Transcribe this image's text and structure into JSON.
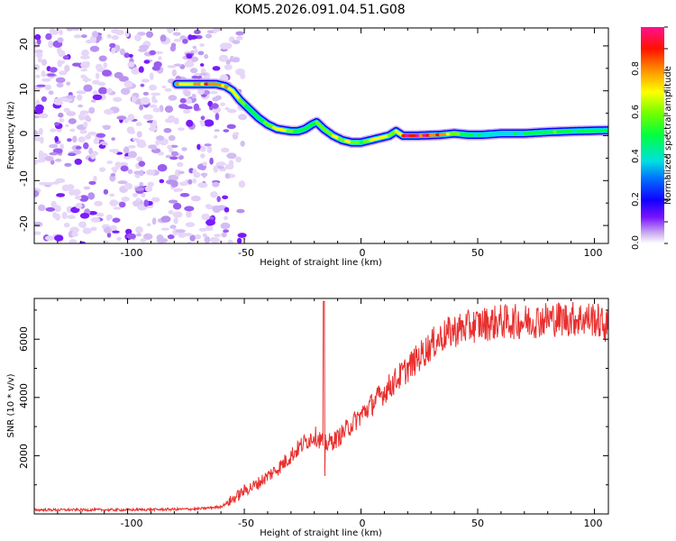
{
  "title": "KOM5.2026.091.04.51.G08",
  "colors": {
    "snr_line": "#e8302f",
    "axis": "#000000",
    "background": "#ffffff"
  },
  "chart_data": [
    {
      "type": "heatmap",
      "name": "spectrogram",
      "xlabel": "Height of straight line (km)",
      "ylabel": "Frequency (Hz)",
      "xlim": [
        -140,
        106
      ],
      "ylim": [
        -24,
        24
      ],
      "x_ticks": [
        -100,
        -50,
        0,
        50,
        100
      ],
      "y_ticks": [
        -20,
        -10,
        0,
        10,
        20
      ],
      "noise_region_x": [
        -140,
        -55
      ],
      "ridge": {
        "description": "narrow high-amplitude frequency track",
        "x": [
          -79,
          -62,
          -58,
          -55,
          -52,
          -48,
          -44,
          -40,
          -36,
          -30,
          -27,
          -24,
          -21,
          -19,
          -16,
          -12,
          -8,
          -4,
          0,
          4,
          8,
          12,
          15,
          18,
          24,
          34,
          40,
          46,
          52,
          60,
          70,
          80,
          90,
          106
        ],
        "freq": [
          11.5,
          11.5,
          11,
          10,
          8,
          6,
          4,
          2.5,
          1.5,
          1,
          1,
          1.5,
          2.5,
          3,
          1.5,
          0,
          -1,
          -1.5,
          -1.5,
          -1,
          -0.5,
          0,
          1,
          0,
          0,
          0.2,
          0.5,
          0.2,
          0.2,
          0.5,
          0.5,
          0.8,
          1,
          1.2
        ],
        "amplitude": [
          0.75,
          0.85,
          0.8,
          0.7,
          0.65,
          0.6,
          0.55,
          0.7,
          0.75,
          0.7,
          0.55,
          0.5,
          0.6,
          0.55,
          0.6,
          0.7,
          0.75,
          0.7,
          0.6,
          0.65,
          0.75,
          0.8,
          0.55,
          0.95,
          0.98,
          0.9,
          0.7,
          0.5,
          0.45,
          0.45,
          0.5,
          0.6,
          0.55,
          0.5
        ]
      },
      "colorbar": {
        "label": "Normalized spectral amplitude",
        "range": [
          0,
          1
        ],
        "ticks": [
          "0.0",
          "0.2",
          "0.4",
          "0.6",
          "0.8"
        ]
      }
    },
    {
      "type": "line",
      "name": "snr",
      "xlabel": "Height of straight line (km)",
      "ylabel": "SNR (10 * v/v)",
      "xlim": [
        -140,
        106
      ],
      "ylim": [
        0,
        7400
      ],
      "x_ticks": [
        -100,
        -50,
        0,
        50,
        100
      ],
      "y_ticks": [
        2000,
        4000,
        6000
      ],
      "envelope": {
        "x": [
          -140,
          -100,
          -70,
          -60,
          -55,
          -50,
          -45,
          -40,
          -35,
          -30,
          -25,
          -20,
          -15,
          -10,
          -5,
          0,
          5,
          10,
          15,
          20,
          25,
          30,
          35,
          40,
          50,
          60,
          70,
          80,
          90,
          100,
          106
        ],
        "y": [
          140,
          140,
          170,
          250,
          500,
          800,
          1000,
          1300,
          1600,
          2000,
          2400,
          2700,
          2400,
          2600,
          3000,
          3400,
          3800,
          4200,
          4600,
          5000,
          5400,
          5800,
          6100,
          6300,
          6500,
          6600,
          6600,
          6700,
          6700,
          6700,
          6400
        ]
      },
      "spike": {
        "x": -16,
        "peak": 7300,
        "dip": 1300
      },
      "noise_amplitude": "increasing with SNR, about +/-400 at high SNR"
    }
  ]
}
